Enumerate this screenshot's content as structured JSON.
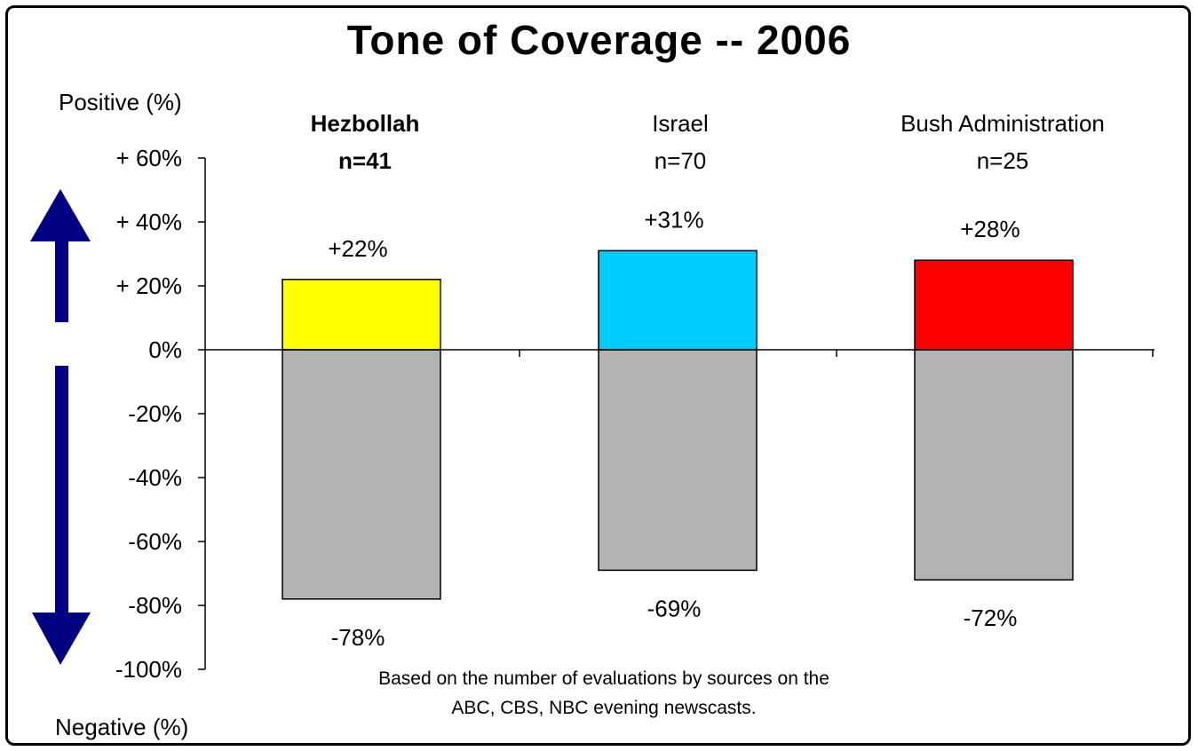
{
  "chart_data": {
    "type": "bar",
    "title": "Tone of Coverage -- 2006",
    "positive_label": "Positive (%)",
    "negative_label": "Negative (%)",
    "yticks": [
      "+ 60%",
      "+ 40%",
      "+ 20%",
      "0%",
      "-20%",
      "-40%",
      "-60%",
      "-80%",
      "-100%"
    ],
    "ylim": [
      -100,
      60
    ],
    "categories": [
      {
        "name": "Hezbollah",
        "n": "n=41",
        "bold": true
      },
      {
        "name": "Israel",
        "n": "n=70",
        "bold": false
      },
      {
        "name": "Bush Administration",
        "n": "n=25",
        "bold": false
      }
    ],
    "series": [
      {
        "name": "Positive",
        "values": [
          22,
          31,
          28
        ],
        "labels": [
          "+22%",
          "+31%",
          "+28%"
        ],
        "colors": [
          "#ffff00",
          "#00ccff",
          "#ff0000"
        ]
      },
      {
        "name": "Negative",
        "values": [
          -78,
          -69,
          -72
        ],
        "labels": [
          "-78%",
          "-69%",
          "-72%"
        ],
        "colors": [
          "#b3b3b3",
          "#b3b3b3",
          "#b3b3b3"
        ]
      }
    ],
    "arrow_color": "#000080",
    "note_line1": "Based on the number of evaluations by sources on the",
    "note_line2": "ABC, CBS, NBC evening newscasts."
  }
}
